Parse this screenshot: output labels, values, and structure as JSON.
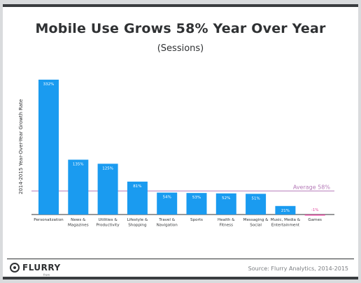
{
  "chart_data": {
    "type": "bar",
    "title": "Mobile Use Grows 58% Year Over Year",
    "subtitle": "(Sessions)",
    "ylabel": "2014-2015 Year-Over-Year Growth Rate",
    "xlabel": "",
    "categories": [
      "Personalization",
      "News & Magazines",
      "Utilities & Productivity",
      "Lifestyle & Shopping",
      "Travel & Navigation",
      "Sports",
      "Health & Fitness",
      "Messaging & Social",
      "Music, Media & Entertainment",
      "Games"
    ],
    "values": [
      332,
      135,
      125,
      81,
      54,
      53,
      52,
      51,
      21,
      -1
    ],
    "value_labels": [
      "332%",
      "135%",
      "125%",
      "81%",
      "54%",
      "53%",
      "52%",
      "51%",
      "21%",
      "-1%"
    ],
    "reference_line": {
      "label": "Average 58%",
      "value": 58,
      "color": "#b57bb8"
    },
    "ylim": [
      -2,
      335
    ],
    "grid": false,
    "legend": "none",
    "colors": {
      "bar": "#1a9bf0",
      "negative_bar": "#e0479e",
      "negative_label": "#e0479e",
      "text": "#2f3133"
    }
  },
  "footer": {
    "logo_text": "FLURRY",
    "logo_sub": "from YAHOO!",
    "source": "Source: Flurry Analytics, 2014-2015"
  }
}
